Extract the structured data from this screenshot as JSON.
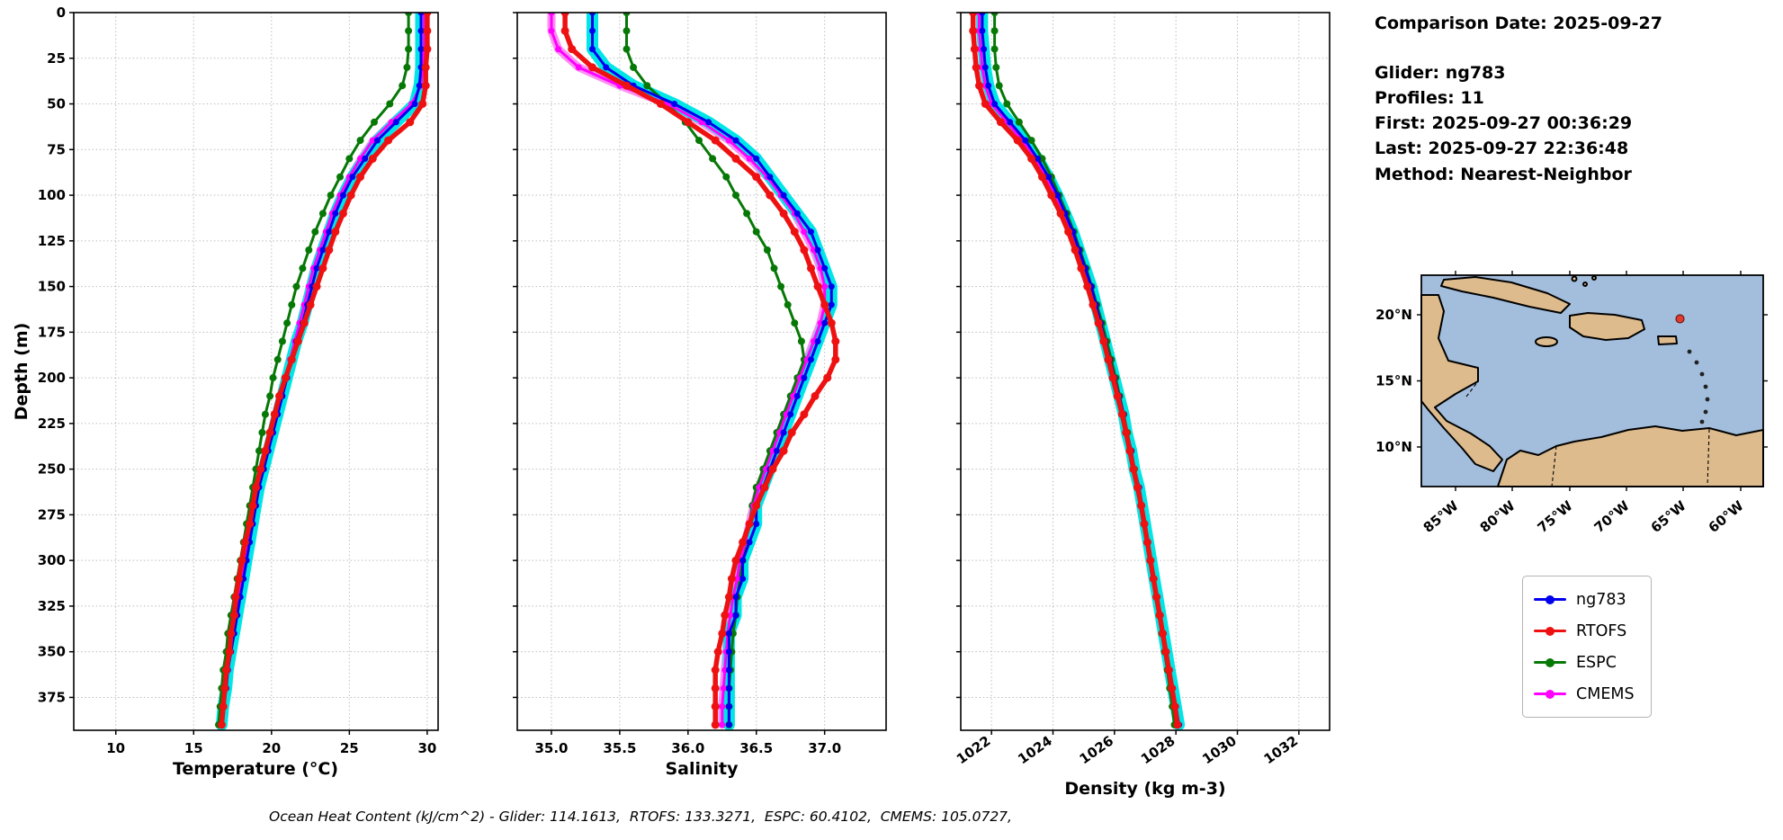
{
  "info_panel": {
    "comparison_date": "Comparison Date: 2025-09-27",
    "glider": "Glider: ng783",
    "profiles": "Profiles: 11",
    "first": "First: 2025-09-27 00:36:29",
    "last": "Last: 2025-09-27 22:36:48",
    "method": "Method: Nearest-Neighbor"
  },
  "legend": {
    "items": [
      {
        "label": "ng783",
        "color": "#0000ee"
      },
      {
        "label": "RTOFS",
        "color": "#ee1111"
      },
      {
        "label": "ESPC",
        "color": "#067806"
      },
      {
        "label": "CMEMS",
        "color": "#ff00ff"
      }
    ]
  },
  "caption": "Ocean Heat Content (kJ/cm^2) - Glider: 114.1613,  RTOFS: 133.3271,  ESPC: 60.4102,  CMEMS: 105.0727,",
  "map": {
    "yticks": [
      "20°N",
      "15°N",
      "10°N"
    ],
    "xticks": [
      "85°W",
      "80°W",
      "75°W",
      "70°W",
      "65°W",
      "60°W"
    ],
    "ocean_color": "#a3bedd",
    "land_color": "#ddbb8d",
    "marker_color": "#e03c31"
  },
  "chart_data": [
    {
      "type": "line",
      "xlabel": "Temperature (°C)",
      "ylabel": "Depth (m)",
      "xlim": [
        7.3,
        30.7
      ],
      "ylim": [
        0,
        393
      ],
      "xticks": [
        10,
        15,
        20,
        25,
        30
      ],
      "xtick_labels": [
        "10",
        "15",
        "20",
        "25",
        "30"
      ],
      "yticks": [
        0,
        25,
        50,
        75,
        100,
        125,
        150,
        175,
        200,
        225,
        250,
        275,
        300,
        325,
        350,
        375
      ],
      "depths": [
        0,
        10,
        20,
        30,
        40,
        50,
        60,
        70,
        80,
        90,
        100,
        110,
        120,
        130,
        140,
        150,
        160,
        170,
        180,
        190,
        200,
        210,
        220,
        230,
        240,
        250,
        260,
        270,
        280,
        290,
        300,
        310,
        320,
        330,
        340,
        350,
        360,
        370,
        380,
        390
      ],
      "series": [
        {
          "name": "ng783",
          "color": "#0000ee",
          "width": 3,
          "marker": 3.5,
          "halo": "#00e6e6",
          "halo_w": 13,
          "values": [
            29.6,
            29.6,
            29.6,
            29.6,
            29.5,
            29.2,
            28.0,
            26.8,
            26.0,
            25.2,
            24.6,
            24.1,
            23.7,
            23.3,
            22.9,
            22.6,
            22.3,
            22.0,
            21.6,
            21.3,
            21.0,
            20.7,
            20.4,
            20.1,
            19.8,
            19.5,
            19.2,
            19.0,
            18.8,
            18.6,
            18.4,
            18.2,
            18.0,
            17.8,
            17.6,
            17.4,
            17.2,
            17.1,
            16.9,
            16.8
          ]
        },
        {
          "name": "RTOFS",
          "color": "#ee1111",
          "width": 5.5,
          "marker": 4.5,
          "values": [
            30.0,
            30.0,
            30.0,
            29.9,
            29.9,
            29.7,
            28.9,
            27.5,
            26.5,
            25.7,
            25.1,
            24.6,
            24.1,
            23.7,
            23.3,
            22.9,
            22.5,
            22.1,
            21.7,
            21.3,
            20.9,
            20.5,
            20.2,
            19.9,
            19.6,
            19.3,
            19.0,
            18.8,
            18.6,
            18.3,
            18.1,
            17.9,
            17.7,
            17.6,
            17.4,
            17.3,
            17.1,
            17.0,
            16.9,
            16.8
          ]
        },
        {
          "name": "ESPC",
          "color": "#067806",
          "width": 3,
          "marker": 4,
          "values": [
            28.8,
            28.8,
            28.8,
            28.7,
            28.4,
            27.6,
            26.6,
            25.7,
            25.0,
            24.4,
            23.8,
            23.3,
            22.8,
            22.4,
            22.0,
            21.6,
            21.3,
            21.0,
            20.7,
            20.4,
            20.1,
            19.9,
            19.6,
            19.4,
            19.2,
            19.0,
            18.8,
            18.6,
            18.4,
            18.2,
            18.0,
            17.8,
            17.6,
            17.4,
            17.2,
            17.1,
            16.9,
            16.8,
            16.7,
            16.6
          ]
        },
        {
          "name": "CMEMS",
          "color": "#ff00ff",
          "width": 3,
          "marker": 3.5,
          "halo": "#ff8df2",
          "halo_w": 7,
          "values": [
            29.8,
            29.8,
            29.8,
            29.7,
            29.6,
            29.0,
            27.7,
            26.5,
            25.7,
            25.0,
            24.4,
            23.9,
            23.5,
            23.1,
            22.7,
            22.4,
            22.1,
            21.8,
            21.5,
            21.2,
            20.9,
            20.6,
            20.3,
            20.0,
            19.7,
            19.4,
            19.1,
            18.9,
            18.7,
            18.5,
            18.3,
            18.1,
            17.9,
            17.7,
            17.5,
            17.3,
            17.2,
            17.0,
            16.9,
            16.8
          ]
        }
      ]
    },
    {
      "type": "line",
      "xlabel": "Salinity",
      "xlim": [
        34.75,
        37.45
      ],
      "ylim": [
        0,
        393
      ],
      "xticks": [
        35.0,
        35.5,
        36.0,
        36.5,
        37.0
      ],
      "xtick_labels": [
        "35.0",
        "35.5",
        "36.0",
        "36.5",
        "37.0"
      ],
      "yticks": [
        0,
        25,
        50,
        75,
        100,
        125,
        150,
        175,
        200,
        225,
        250,
        275,
        300,
        325,
        350,
        375
      ],
      "depths": [
        0,
        10,
        20,
        30,
        40,
        50,
        60,
        70,
        80,
        90,
        100,
        110,
        120,
        130,
        140,
        150,
        160,
        170,
        180,
        190,
        200,
        210,
        220,
        230,
        240,
        250,
        260,
        270,
        280,
        290,
        300,
        310,
        320,
        330,
        340,
        350,
        360,
        370,
        380,
        390
      ],
      "series": [
        {
          "name": "ng783",
          "color": "#0000ee",
          "width": 3,
          "marker": 3.5,
          "halo": "#00e6e6",
          "halo_w": 13,
          "values": [
            35.3,
            35.3,
            35.3,
            35.4,
            35.6,
            35.9,
            36.15,
            36.35,
            36.5,
            36.6,
            36.7,
            36.8,
            36.9,
            36.95,
            37.0,
            37.05,
            37.05,
            37.0,
            36.95,
            36.9,
            36.85,
            36.8,
            36.75,
            36.7,
            36.65,
            36.6,
            36.55,
            36.5,
            36.5,
            36.45,
            36.4,
            36.4,
            36.35,
            36.35,
            36.3,
            36.3,
            36.3,
            36.3,
            36.3,
            36.3
          ]
        },
        {
          "name": "RTOFS",
          "color": "#ee1111",
          "width": 5.5,
          "marker": 4.5,
          "values": [
            35.1,
            35.1,
            35.15,
            35.3,
            35.55,
            35.8,
            36.0,
            36.2,
            36.35,
            36.5,
            36.6,
            36.7,
            36.78,
            36.85,
            36.9,
            36.95,
            37.0,
            37.05,
            37.08,
            37.08,
            37.02,
            36.93,
            36.85,
            36.76,
            36.7,
            36.62,
            36.56,
            36.5,
            36.45,
            36.4,
            36.35,
            36.32,
            36.3,
            36.27,
            36.25,
            36.22,
            36.2,
            36.2,
            36.2,
            36.2
          ]
        },
        {
          "name": "ESPC",
          "color": "#067806",
          "width": 3,
          "marker": 4,
          "values": [
            35.55,
            35.55,
            35.55,
            35.6,
            35.7,
            35.85,
            35.98,
            36.08,
            36.18,
            36.28,
            36.35,
            36.43,
            36.5,
            36.58,
            36.63,
            36.68,
            36.73,
            36.78,
            36.83,
            36.85,
            36.8,
            36.75,
            36.7,
            36.65,
            36.6,
            36.55,
            36.5,
            36.47,
            36.45,
            36.42,
            36.4,
            36.38,
            36.36,
            36.35,
            36.33,
            36.32,
            36.31,
            36.3,
            36.3,
            36.3
          ]
        },
        {
          "name": "CMEMS",
          "color": "#ff00ff",
          "width": 3,
          "marker": 3.5,
          "halo": "#ff8df2",
          "halo_w": 9,
          "values": [
            35.0,
            35.0,
            35.05,
            35.2,
            35.5,
            35.85,
            36.1,
            36.3,
            36.45,
            36.58,
            36.68,
            36.78,
            36.85,
            36.92,
            36.97,
            37.0,
            37.0,
            36.97,
            36.92,
            36.87,
            36.82,
            36.77,
            36.72,
            36.67,
            36.62,
            36.57,
            36.52,
            36.48,
            36.45,
            36.42,
            36.38,
            36.36,
            36.33,
            36.31,
            36.29,
            36.28,
            36.27,
            36.26,
            36.25,
            36.25
          ]
        }
      ]
    },
    {
      "type": "line",
      "xlabel": "Density (kg m-3)",
      "xlim": [
        1021,
        1033
      ],
      "ylim": [
        0,
        393
      ],
      "xticks": [
        1022,
        1024,
        1026,
        1028,
        1030,
        1032
      ],
      "xtick_labels": [
        "1022",
        "1024",
        "1026",
        "1028",
        "1030",
        "1032"
      ],
      "yticks": [
        0,
        25,
        50,
        75,
        100,
        125,
        150,
        175,
        200,
        225,
        250,
        275,
        300,
        325,
        350,
        375
      ],
      "depths": [
        0,
        10,
        20,
        30,
        40,
        50,
        60,
        70,
        80,
        90,
        100,
        110,
        120,
        130,
        140,
        150,
        160,
        170,
        180,
        190,
        200,
        210,
        220,
        230,
        240,
        250,
        260,
        270,
        280,
        290,
        300,
        310,
        320,
        330,
        340,
        350,
        360,
        370,
        380,
        390
      ],
      "series": [
        {
          "name": "ng783",
          "color": "#0000ee",
          "width": 3,
          "marker": 3.5,
          "halo": "#00e6e6",
          "halo_w": 13,
          "values": [
            1021.7,
            1021.7,
            1021.75,
            1021.8,
            1021.9,
            1022.1,
            1022.6,
            1023.1,
            1023.5,
            1023.85,
            1024.15,
            1024.4,
            1024.65,
            1024.85,
            1025.05,
            1025.25,
            1025.4,
            1025.55,
            1025.7,
            1025.85,
            1026.0,
            1026.15,
            1026.3,
            1026.4,
            1026.55,
            1026.65,
            1026.8,
            1026.9,
            1027.0,
            1027.1,
            1027.2,
            1027.3,
            1027.4,
            1027.5,
            1027.6,
            1027.7,
            1027.8,
            1027.9,
            1028.0,
            1028.1
          ]
        },
        {
          "name": "RTOFS",
          "color": "#ee1111",
          "width": 5.5,
          "marker": 4.5,
          "values": [
            1021.4,
            1021.4,
            1021.45,
            1021.5,
            1021.6,
            1021.8,
            1022.3,
            1022.85,
            1023.3,
            1023.65,
            1023.95,
            1024.25,
            1024.5,
            1024.72,
            1024.92,
            1025.12,
            1025.3,
            1025.48,
            1025.65,
            1025.8,
            1025.95,
            1026.1,
            1026.25,
            1026.38,
            1026.5,
            1026.62,
            1026.75,
            1026.87,
            1026.97,
            1027.07,
            1027.17,
            1027.27,
            1027.37,
            1027.47,
            1027.57,
            1027.67,
            1027.77,
            1027.87,
            1027.97,
            1028.05
          ]
        },
        {
          "name": "ESPC",
          "color": "#067806",
          "width": 3,
          "marker": 4,
          "values": [
            1022.1,
            1022.1,
            1022.1,
            1022.15,
            1022.25,
            1022.5,
            1022.9,
            1023.3,
            1023.65,
            1023.95,
            1024.2,
            1024.45,
            1024.68,
            1024.88,
            1025.08,
            1025.26,
            1025.43,
            1025.6,
            1025.75,
            1025.9,
            1026.04,
            1026.17,
            1026.3,
            1026.42,
            1026.54,
            1026.65,
            1026.76,
            1026.87,
            1026.97,
            1027.07,
            1027.17,
            1027.27,
            1027.36,
            1027.45,
            1027.54,
            1027.63,
            1027.72,
            1027.8,
            1027.88,
            1027.95
          ]
        },
        {
          "name": "CMEMS",
          "color": "#ff00ff",
          "width": 3,
          "marker": 3.5,
          "halo": "#ff8df2",
          "halo_w": 7,
          "values": [
            1021.6,
            1021.6,
            1021.65,
            1021.7,
            1021.8,
            1022.0,
            1022.5,
            1023.0,
            1023.4,
            1023.75,
            1024.05,
            1024.32,
            1024.56,
            1024.78,
            1024.98,
            1025.18,
            1025.35,
            1025.5,
            1025.66,
            1025.8,
            1025.95,
            1026.1,
            1026.24,
            1026.37,
            1026.5,
            1026.62,
            1026.74,
            1026.85,
            1026.95,
            1027.06,
            1027.16,
            1027.26,
            1027.36,
            1027.46,
            1027.56,
            1027.66,
            1027.76,
            1027.86,
            1027.96,
            1028.05
          ]
        }
      ]
    }
  ]
}
